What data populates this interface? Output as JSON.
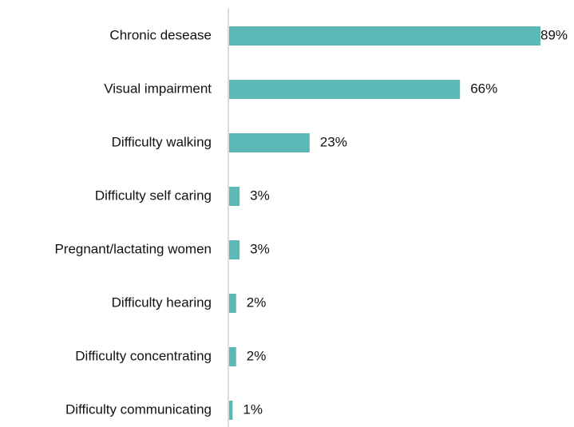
{
  "chart_data": {
    "type": "bar",
    "orientation": "horizontal",
    "categories": [
      "Chronic desease",
      "Visual impairment",
      "Difficulty walking",
      "Difficulty self caring",
      "Pregnant/lactating women",
      "Difficulty hearing",
      "Difficulty concentrating",
      "Difficulty communicating"
    ],
    "values": [
      89,
      66,
      23,
      3,
      3,
      2,
      2,
      1
    ],
    "value_labels": [
      "89%",
      "66%",
      "23%",
      "3%",
      "3%",
      "2%",
      "2%",
      "1%"
    ],
    "color": "#5bbab5"
  }
}
